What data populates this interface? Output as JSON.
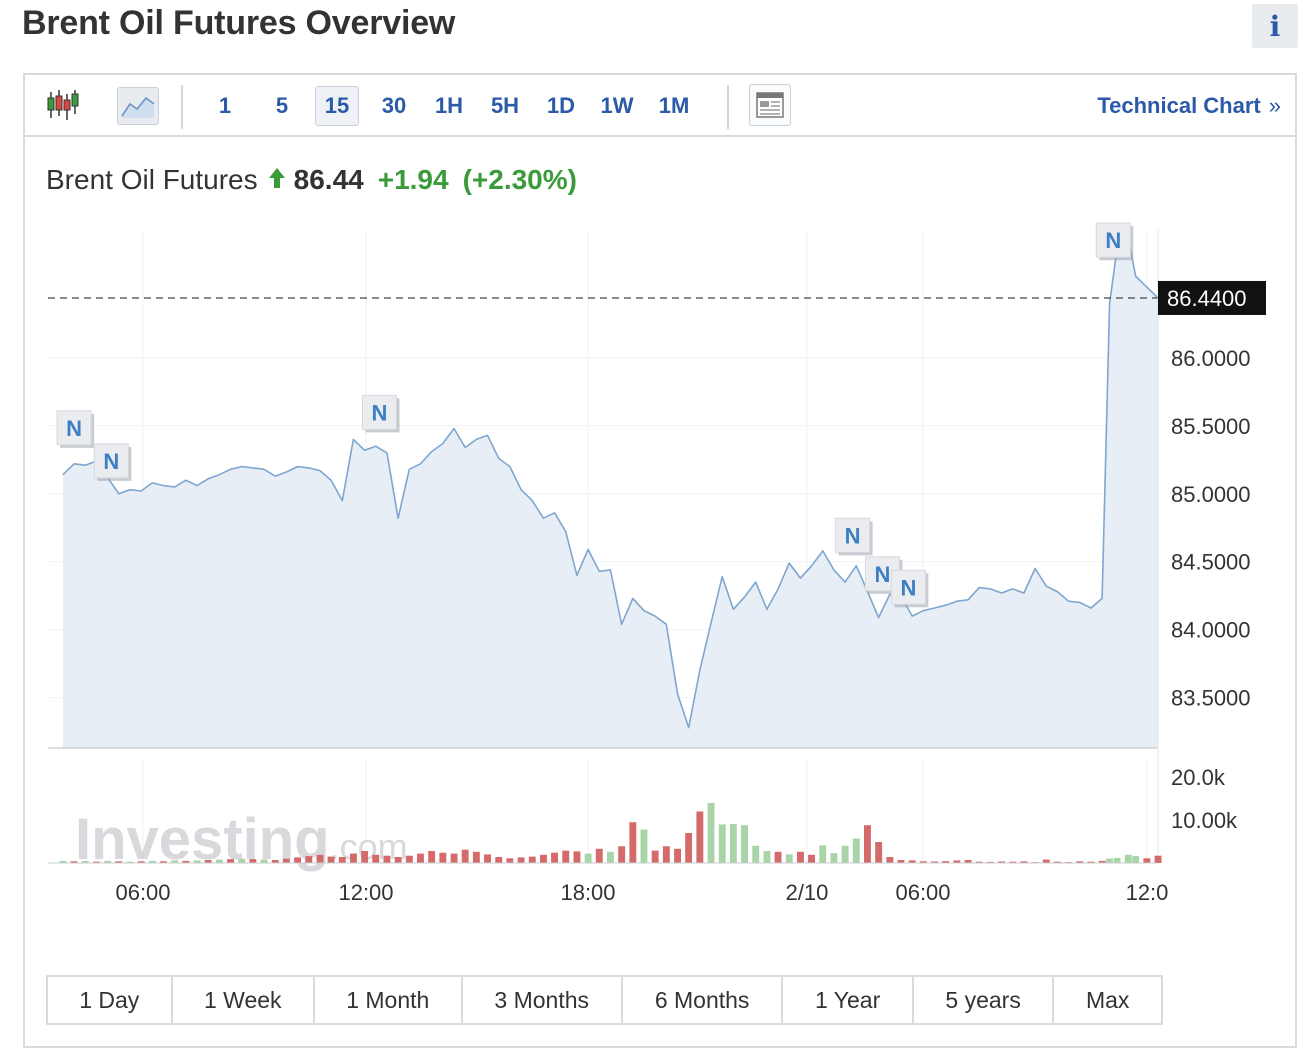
{
  "page": {
    "title": "Brent Oil Futures Overview",
    "info_label": "i"
  },
  "toolbar": {
    "chart_type_icons": [
      "candlestick-icon",
      "line-chart-icon"
    ],
    "intervals": [
      "1",
      "5",
      "15",
      "30",
      "1H",
      "5H",
      "1D",
      "1W",
      "1M"
    ],
    "active_interval": "15",
    "layout_icon": "layout-icon",
    "technical_chart_label": "Technical Chart",
    "technical_chart_arrow": "»"
  },
  "quote": {
    "name": "Brent Oil Futures",
    "price": "86.44",
    "change": "+1.94",
    "change_pct": "(+2.30%)",
    "direction": "up"
  },
  "watermark": {
    "brand": "Investing",
    "suffix": ".com"
  },
  "colors": {
    "line": "#7ea6cf",
    "area": "#e8eef6",
    "up_volume": "#a8d4a8",
    "down_volume": "#d46a6a",
    "link": "#2a5aa8",
    "positive": "#3a9b3a"
  },
  "chart_data": {
    "type": "area",
    "current_value_label": "86.4400",
    "y_ticks": [
      "86.0000",
      "85.5000",
      "85.0000",
      "84.5000",
      "84.0000",
      "83.5000"
    ],
    "y_tick_values": [
      86.0,
      85.5,
      85.0,
      84.5,
      84.0,
      83.5
    ],
    "ylim": [
      83.13,
      86.94
    ],
    "x_tick_labels": [
      "06:00",
      "12:00",
      "18:00",
      "2/10",
      "06:00",
      "12:0"
    ],
    "volume_ticks": [
      "20.0k",
      "10.00k"
    ],
    "volume_tick_values": [
      20000,
      10000
    ],
    "volume_max": 24000,
    "news_markers": [
      "N",
      "N",
      "N",
      "N",
      "N",
      "N",
      "N"
    ],
    "news_marker_times": [
      0.3,
      1.3,
      8.5,
      21.2,
      22.0,
      22.7,
      28.2
    ],
    "price_series": {
      "name": "",
      "x": [
        0,
        0.3,
        0.6,
        0.9,
        1.2,
        1.5,
        1.8,
        2.1,
        2.4,
        2.7,
        3.0,
        3.3,
        3.6,
        3.9,
        4.2,
        4.5,
        4.8,
        5.1,
        5.4,
        5.7,
        6.0,
        6.3,
        6.6,
        6.9,
        7.2,
        7.5,
        7.8,
        8.1,
        8.4,
        8.7,
        9.0,
        9.3,
        9.6,
        9.9,
        10.2,
        10.5,
        10.8,
        11.1,
        11.4,
        11.7,
        12.0,
        12.3,
        12.6,
        12.9,
        13.2,
        13.5,
        13.8,
        14.1,
        14.4,
        14.7,
        15.0,
        15.3,
        15.6,
        15.9,
        16.2,
        16.5,
        16.8,
        17.1,
        17.4,
        17.7,
        18.0,
        18.3,
        18.6,
        18.9,
        19.2,
        19.5,
        19.8,
        20.1,
        20.4,
        20.7,
        21.0,
        21.3,
        21.6,
        21.9,
        22.2,
        22.5,
        22.8,
        23.1,
        23.4,
        23.7,
        24.0,
        24.3,
        24.6,
        24.9,
        25.2,
        25.5,
        25.8,
        26.1,
        26.4,
        26.7,
        27.0,
        27.3,
        27.6,
        27.9,
        28.1,
        28.3,
        28.6,
        28.8,
        29.1,
        29.4
      ],
      "values": [
        85.14,
        85.22,
        85.21,
        85.24,
        85.12,
        85.0,
        85.03,
        85.02,
        85.08,
        85.06,
        85.05,
        85.1,
        85.06,
        85.11,
        85.14,
        85.18,
        85.2,
        85.19,
        85.18,
        85.13,
        85.16,
        85.2,
        85.19,
        85.17,
        85.1,
        84.95,
        85.4,
        85.32,
        85.35,
        85.3,
        84.82,
        85.18,
        85.22,
        85.31,
        85.37,
        85.48,
        85.34,
        85.4,
        85.43,
        85.26,
        85.2,
        85.03,
        84.95,
        84.82,
        84.86,
        84.72,
        84.4,
        84.59,
        84.43,
        84.44,
        84.04,
        84.23,
        84.14,
        84.1,
        84.04,
        83.53,
        83.28,
        83.7,
        84.05,
        84.39,
        84.15,
        84.24,
        84.35,
        84.15,
        84.3,
        84.49,
        84.38,
        84.47,
        84.58,
        84.44,
        84.35,
        84.47,
        84.28,
        84.09,
        84.26,
        84.25,
        84.1,
        84.14,
        84.16,
        84.18,
        84.21,
        84.22,
        84.31,
        84.3,
        84.27,
        84.3,
        84.27,
        84.45,
        84.32,
        84.28,
        84.21,
        84.2,
        84.16,
        84.23,
        86.4,
        86.8,
        86.88,
        86.6,
        86.52,
        86.44
      ],
      "last_value": 86.44
    },
    "volume_series": {
      "name": "",
      "x": [
        0,
        0.3,
        0.6,
        0.9,
        1.2,
        1.5,
        1.8,
        2.1,
        2.4,
        2.7,
        3.0,
        3.3,
        3.6,
        3.9,
        4.2,
        4.5,
        4.8,
        5.1,
        5.4,
        5.7,
        6.0,
        6.3,
        6.6,
        6.9,
        7.2,
        7.5,
        7.8,
        8.1,
        8.4,
        8.7,
        9.0,
        9.3,
        9.6,
        9.9,
        10.2,
        10.5,
        10.8,
        11.1,
        11.4,
        11.7,
        12.0,
        12.3,
        12.6,
        12.9,
        13.2,
        13.5,
        13.8,
        14.1,
        14.4,
        14.7,
        15.0,
        15.3,
        15.6,
        15.9,
        16.2,
        16.5,
        16.8,
        17.1,
        17.4,
        17.7,
        18.0,
        18.3,
        18.6,
        18.9,
        19.2,
        19.5,
        19.8,
        20.1,
        20.4,
        20.7,
        21.0,
        21.3,
        21.6,
        21.9,
        22.2,
        22.5,
        22.8,
        23.1,
        23.4,
        23.7,
        24.0,
        24.3,
        24.6,
        24.9,
        25.2,
        25.5,
        25.8,
        26.1,
        26.4,
        26.7,
        27.0,
        27.3,
        27.6,
        27.9,
        28.1,
        28.3,
        28.6,
        28.8,
        29.1,
        29.4
      ],
      "values": [
        500,
        400,
        500,
        300,
        500,
        400,
        300,
        400,
        500,
        400,
        600,
        500,
        600,
        700,
        800,
        900,
        1000,
        900,
        800,
        700,
        1000,
        1300,
        1600,
        1900,
        1500,
        1400,
        2200,
        2800,
        1900,
        1700,
        1400,
        1700,
        2200,
        2800,
        2400,
        2200,
        3100,
        2600,
        2000,
        1400,
        1100,
        1300,
        1500,
        1900,
        2400,
        2900,
        2700,
        2200,
        3300,
        2600,
        3900,
        9500,
        7800,
        2900,
        3900,
        3300,
        7000,
        12000,
        14000,
        9000,
        9100,
        8800,
        4000,
        2800,
        2600,
        2000,
        2600,
        1900,
        4100,
        2300,
        4000,
        5700,
        8800,
        4900,
        1400,
        700,
        600,
        400,
        350,
        450,
        600,
        700,
        300,
        250,
        350,
        300,
        400,
        200,
        800,
        300,
        200,
        400,
        300,
        500,
        1000,
        1200,
        1900,
        1600,
        1100,
        1700
      ],
      "up": [
        true,
        false,
        true,
        false,
        true,
        false,
        true,
        false,
        true,
        false,
        true,
        false,
        true,
        false,
        true,
        false,
        true,
        false,
        true,
        false,
        false,
        false,
        false,
        false,
        false,
        false,
        false,
        false,
        false,
        false,
        false,
        false,
        false,
        false,
        false,
        false,
        false,
        false,
        false,
        false,
        false,
        false,
        false,
        false,
        false,
        false,
        false,
        true,
        false,
        true,
        false,
        false,
        true,
        false,
        false,
        false,
        false,
        false,
        true,
        true,
        true,
        true,
        true,
        true,
        false,
        true,
        false,
        false,
        true,
        true,
        true,
        true,
        false,
        false,
        false,
        false,
        false,
        false,
        false,
        false,
        false,
        false,
        false,
        false,
        false,
        false,
        false,
        false,
        false,
        false,
        false,
        false,
        false,
        false,
        true,
        true,
        true,
        true,
        false,
        false
      ]
    }
  },
  "ranges": [
    "1 Day",
    "1 Week",
    "1 Month",
    "3 Months",
    "6 Months",
    "1 Year",
    "5 years",
    "Max"
  ]
}
